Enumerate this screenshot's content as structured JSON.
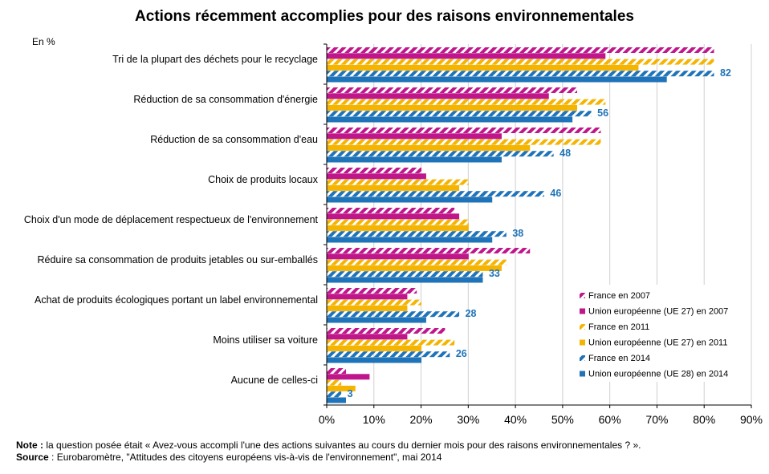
{
  "chart_data": {
    "type": "bar",
    "orientation": "horizontal",
    "title": "Actions récemment accomplies pour des raisons environnementales",
    "unit_label": "En %",
    "categories": [
      "Tri de la plupart des déchets pour le recyclage",
      "Réduction de sa consommation d'énergie",
      "Réduction de sa consommation d'eau",
      "Choix de produits locaux",
      "Choix d'un mode de déplacement respectueux de l'environnement",
      "Réduire sa consommation de produits jetables ou sur-emballés",
      "Achat de produits écologiques portant un label environnemental",
      "Moins utiliser sa voiture",
      "Aucune de celles-ci"
    ],
    "series": [
      {
        "name": "France en 2007",
        "color": "#C0168B",
        "pattern": "hatched",
        "values": [
          82,
          53,
          58,
          20,
          27,
          43,
          19,
          25,
          4
        ]
      },
      {
        "name": "Union européenne (UE 27) en 2007",
        "color": "#C0168B",
        "pattern": "solid",
        "values": [
          59,
          47,
          37,
          21,
          28,
          30,
          17,
          17,
          9
        ]
      },
      {
        "name": "France en 2011",
        "color": "#F5B400",
        "pattern": "hatched",
        "values": [
          82,
          59,
          58,
          30,
          30,
          38,
          20,
          27,
          3
        ]
      },
      {
        "name": "Union européenne (UE 27) en 2011",
        "color": "#F5B400",
        "pattern": "solid",
        "values": [
          66,
          53,
          43,
          28,
          30,
          37,
          17,
          20,
          6
        ]
      },
      {
        "name": "France en 2014",
        "color": "#1F73B8",
        "pattern": "hatched",
        "values": [
          82,
          56,
          48,
          46,
          38,
          33,
          28,
          26,
          3
        ]
      },
      {
        "name": "Union européenne (UE 28) en 2014",
        "color": "#1F73B8",
        "pattern": "solid",
        "values": [
          72,
          52,
          37,
          35,
          35,
          33,
          21,
          20,
          4
        ]
      }
    ],
    "data_labels": {
      "series": "France en 2014",
      "values": [
        82,
        56,
        48,
        46,
        38,
        33,
        28,
        26,
        3
      ]
    },
    "xlim": [
      0,
      90
    ],
    "xticks": [
      "0%",
      "10%",
      "20%",
      "30%",
      "40%",
      "50%",
      "60%",
      "70%",
      "80%",
      "90%"
    ],
    "grid": true,
    "legend_position": "bottom-right"
  },
  "footer": {
    "note_label": "Note :",
    "note_text": " la question posée était « Avez-vous  accompli l'une des actions suivantes au cours du dernier mois pour des raisons environnementales  ? ».",
    "source_label": "Source",
    "source_text": " : Eurobaromètre,  \"Attitudes des citoyens européens vis-à-vis  de l'environnement\",  mai 2014"
  }
}
